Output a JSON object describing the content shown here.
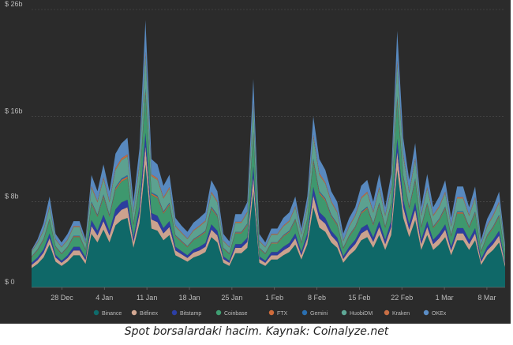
{
  "caption": "Spot borsalardaki hacim. Kaynak: Coinalyze.net",
  "chart_data": {
    "type": "area",
    "stacked": true,
    "ylim": [
      0,
      26
    ],
    "yticks": [
      0,
      8,
      16,
      26
    ],
    "ytick_labels": [
      "$ 0",
      "$ 8b",
      "$ 16b",
      "$ 26b"
    ],
    "x_start": "2020-12-23",
    "x_end": "2021-03-11",
    "xticks": [
      "2020-12-28",
      "2021-01-04",
      "2021-01-11",
      "2021-01-18",
      "2021-01-25",
      "2021-02-01",
      "2021-02-08",
      "2021-02-15",
      "2021-02-22",
      "2021-03-01",
      "2021-03-08"
    ],
    "xtick_labels": [
      "28 Dec",
      "4 Jan",
      "11 Jan",
      "18 Jan",
      "25 Jan",
      "1 Feb",
      "8 Feb",
      "15 Feb",
      "22 Feb",
      "1 Mar",
      "8 Mar"
    ],
    "grid": true,
    "legend_position": "bottom",
    "total": [
      3.5,
      4.5,
      6.0,
      8.5,
      5.0,
      4.2,
      5.0,
      6.2,
      6.2,
      4.5,
      10.5,
      9.0,
      11.5,
      9.0,
      12.5,
      13.5,
      14.0,
      8.0,
      13.0,
      25.0,
      12.0,
      11.5,
      9.5,
      10.5,
      6.5,
      5.8,
      5.2,
      6.0,
      6.5,
      7.0,
      10.0,
      9.0,
      5.0,
      4.3,
      6.8,
      6.8,
      8.0,
      19.5,
      5.0,
      4.2,
      5.5,
      5.5,
      6.5,
      7.0,
      8.5,
      5.5,
      8.5,
      16.0,
      12.0,
      11.0,
      9.0,
      8.0,
      5.0,
      6.5,
      7.5,
      9.5,
      10.0,
      8.0,
      10.5,
      7.5,
      10.5,
      24.0,
      14.0,
      10.0,
      13.5,
      7.5,
      10.5,
      7.5,
      8.5,
      10.0,
      6.5,
      9.5,
      9.5,
      7.5,
      9.5,
      4.5,
      6.5,
      7.5,
      9.0,
      4.0
    ],
    "series": [
      {
        "name": "Binance",
        "color": "#0e6b6b",
        "values": [
          1.8,
          2.2,
          2.8,
          4.0,
          2.4,
          2.0,
          2.4,
          3.0,
          3.0,
          2.2,
          5.0,
          4.2,
          5.4,
          4.2,
          5.8,
          6.3,
          6.5,
          3.7,
          6.0,
          11.5,
          5.5,
          5.3,
          4.4,
          4.9,
          3.0,
          2.7,
          2.4,
          2.8,
          3.0,
          3.3,
          4.7,
          4.2,
          2.3,
          2.0,
          3.2,
          3.2,
          3.7,
          9.0,
          2.3,
          2.0,
          2.6,
          2.6,
          3.0,
          3.3,
          4.0,
          2.6,
          4.0,
          7.5,
          5.6,
          5.2,
          4.2,
          3.7,
          2.3,
          3.0,
          3.5,
          4.4,
          4.7,
          3.7,
          4.9,
          3.5,
          4.9,
          11.0,
          6.5,
          4.7,
          6.3,
          3.5,
          4.9,
          3.5,
          4.0,
          4.7,
          3.0,
          4.4,
          4.4,
          3.5,
          4.4,
          2.1,
          3.0,
          3.5,
          4.2,
          1.9
        ]
      },
      {
        "name": "Bitfinex",
        "color": "#d4a993",
        "values": [
          0.3,
          0.35,
          0.45,
          0.6,
          0.4,
          0.3,
          0.35,
          0.45,
          0.45,
          0.35,
          0.75,
          0.65,
          0.8,
          0.65,
          0.85,
          0.95,
          1.0,
          0.55,
          0.9,
          1.7,
          0.85,
          0.8,
          0.65,
          0.75,
          0.45,
          0.4,
          0.35,
          0.45,
          0.45,
          0.5,
          0.7,
          0.65,
          0.35,
          0.3,
          0.5,
          0.5,
          0.55,
          1.35,
          0.35,
          0.3,
          0.4,
          0.4,
          0.45,
          0.5,
          0.6,
          0.4,
          0.6,
          1.1,
          0.85,
          0.75,
          0.65,
          0.55,
          0.35,
          0.45,
          0.55,
          0.65,
          0.7,
          0.55,
          0.75,
          0.55,
          0.75,
          1.7,
          1.0,
          0.7,
          0.95,
          0.55,
          0.75,
          0.55,
          0.6,
          0.7,
          0.45,
          0.65,
          0.65,
          0.55,
          0.65,
          0.3,
          0.45,
          0.55,
          0.65,
          0.3
        ]
      },
      {
        "name": "Bitstamp",
        "color": "#2c3fa5",
        "values": [
          0.2,
          0.25,
          0.3,
          0.45,
          0.25,
          0.2,
          0.25,
          0.35,
          0.35,
          0.25,
          0.55,
          0.45,
          0.6,
          0.45,
          0.65,
          0.7,
          0.7,
          0.4,
          0.65,
          1.25,
          0.6,
          0.6,
          0.5,
          0.55,
          0.35,
          0.3,
          0.25,
          0.3,
          0.35,
          0.35,
          0.5,
          0.45,
          0.25,
          0.2,
          0.35,
          0.35,
          0.4,
          1.0,
          0.25,
          0.2,
          0.3,
          0.3,
          0.35,
          0.35,
          0.45,
          0.3,
          0.45,
          0.8,
          0.6,
          0.55,
          0.45,
          0.4,
          0.25,
          0.35,
          0.4,
          0.5,
          0.5,
          0.4,
          0.55,
          0.4,
          0.55,
          1.2,
          0.7,
          0.5,
          0.7,
          0.4,
          0.55,
          0.4,
          0.45,
          0.5,
          0.35,
          0.5,
          0.5,
          0.4,
          0.5,
          0.25,
          0.35,
          0.4,
          0.45,
          0.2
        ]
      },
      {
        "name": "Coinbase",
        "color": "#3f9e72",
        "values": [
          0.5,
          0.65,
          0.85,
          1.2,
          0.7,
          0.6,
          0.7,
          0.9,
          0.9,
          0.65,
          1.5,
          1.3,
          1.65,
          1.3,
          1.8,
          1.95,
          2.0,
          1.15,
          1.85,
          3.6,
          1.7,
          1.65,
          1.35,
          1.5,
          0.95,
          0.85,
          0.75,
          0.85,
          0.95,
          1.0,
          1.45,
          1.3,
          0.7,
          0.6,
          1.0,
          1.0,
          1.15,
          2.8,
          0.7,
          0.6,
          0.8,
          0.8,
          0.95,
          1.0,
          1.2,
          0.8,
          1.2,
          2.3,
          1.7,
          1.6,
          1.3,
          1.15,
          0.7,
          0.95,
          1.1,
          1.35,
          1.45,
          1.15,
          1.5,
          1.1,
          1.5,
          3.45,
          2.0,
          1.45,
          1.95,
          1.1,
          1.5,
          1.1,
          1.2,
          1.45,
          0.95,
          1.35,
          1.35,
          1.1,
          1.35,
          0.65,
          0.95,
          1.1,
          1.3,
          0.6
        ]
      },
      {
        "name": "FTX",
        "color": "#cf6b3a",
        "values": [
          0.05,
          0.06,
          0.08,
          0.1,
          0.06,
          0.05,
          0.06,
          0.08,
          0.08,
          0.06,
          0.13,
          0.11,
          0.14,
          0.11,
          0.15,
          0.16,
          0.17,
          0.1,
          0.16,
          0.31,
          0.15,
          0.14,
          0.12,
          0.13,
          0.08,
          0.07,
          0.06,
          0.07,
          0.08,
          0.09,
          0.12,
          0.11,
          0.06,
          0.05,
          0.08,
          0.08,
          0.1,
          0.24,
          0.06,
          0.05,
          0.07,
          0.07,
          0.08,
          0.09,
          0.1,
          0.07,
          0.1,
          0.2,
          0.15,
          0.14,
          0.11,
          0.1,
          0.06,
          0.08,
          0.09,
          0.12,
          0.12,
          0.1,
          0.13,
          0.09,
          0.13,
          0.3,
          0.17,
          0.12,
          0.17,
          0.09,
          0.13,
          0.09,
          0.1,
          0.12,
          0.08,
          0.12,
          0.12,
          0.09,
          0.12,
          0.06,
          0.08,
          0.09,
          0.11,
          0.05
        ]
      },
      {
        "name": "Gemini",
        "color": "#2a6fb0",
        "values": [
          0.04,
          0.05,
          0.06,
          0.08,
          0.05,
          0.04,
          0.05,
          0.06,
          0.06,
          0.05,
          0.1,
          0.09,
          0.11,
          0.09,
          0.12,
          0.13,
          0.13,
          0.08,
          0.12,
          0.24,
          0.11,
          0.11,
          0.09,
          0.1,
          0.06,
          0.06,
          0.05,
          0.06,
          0.06,
          0.07,
          0.1,
          0.09,
          0.05,
          0.04,
          0.06,
          0.06,
          0.08,
          0.18,
          0.05,
          0.04,
          0.05,
          0.05,
          0.06,
          0.07,
          0.08,
          0.05,
          0.08,
          0.15,
          0.11,
          0.1,
          0.09,
          0.08,
          0.05,
          0.06,
          0.07,
          0.09,
          0.1,
          0.08,
          0.1,
          0.07,
          0.1,
          0.23,
          0.13,
          0.1,
          0.13,
          0.07,
          0.1,
          0.07,
          0.08,
          0.1,
          0.06,
          0.09,
          0.09,
          0.07,
          0.09,
          0.04,
          0.06,
          0.07,
          0.09,
          0.04
        ]
      },
      {
        "name": "HuobiDM",
        "color": "#5fa896",
        "values": [
          0.45,
          0.6,
          0.75,
          1.05,
          0.6,
          0.55,
          0.6,
          0.8,
          0.8,
          0.55,
          1.3,
          1.15,
          1.45,
          1.15,
          1.6,
          1.7,
          1.75,
          1.0,
          1.6,
          3.1,
          1.5,
          1.45,
          1.2,
          1.3,
          0.8,
          0.7,
          0.65,
          0.75,
          0.8,
          0.85,
          1.25,
          1.15,
          0.6,
          0.55,
          0.85,
          0.85,
          1.0,
          2.45,
          0.6,
          0.55,
          0.7,
          0.7,
          0.8,
          0.85,
          1.05,
          0.7,
          1.05,
          2.0,
          1.5,
          1.35,
          1.15,
          1.0,
          0.6,
          0.8,
          0.95,
          1.2,
          1.25,
          1.0,
          1.3,
          0.95,
          1.3,
          3.0,
          1.75,
          1.25,
          1.7,
          0.95,
          1.3,
          0.95,
          1.05,
          1.25,
          0.8,
          1.2,
          1.2,
          0.95,
          1.2,
          0.55,
          0.8,
          0.95,
          1.1,
          0.5
        ]
      },
      {
        "name": "Kraken",
        "color": "#c96f45",
        "values": [
          0.05,
          0.06,
          0.08,
          0.12,
          0.07,
          0.06,
          0.07,
          0.09,
          0.09,
          0.06,
          0.15,
          0.13,
          0.16,
          0.13,
          0.18,
          0.19,
          0.2,
          0.11,
          0.18,
          0.35,
          0.17,
          0.16,
          0.13,
          0.15,
          0.09,
          0.08,
          0.07,
          0.08,
          0.09,
          0.1,
          0.14,
          0.13,
          0.07,
          0.06,
          0.1,
          0.1,
          0.11,
          0.27,
          0.07,
          0.06,
          0.08,
          0.08,
          0.09,
          0.1,
          0.12,
          0.08,
          0.12,
          0.22,
          0.17,
          0.15,
          0.13,
          0.11,
          0.07,
          0.09,
          0.11,
          0.13,
          0.14,
          0.11,
          0.15,
          0.11,
          0.15,
          0.34,
          0.2,
          0.14,
          0.19,
          0.11,
          0.15,
          0.11,
          0.12,
          0.14,
          0.09,
          0.13,
          0.13,
          0.11,
          0.13,
          0.06,
          0.09,
          0.11,
          0.13,
          0.06
        ]
      },
      {
        "name": "OKEx",
        "color": "#5b8ec7",
        "values": [
          0.11,
          0.28,
          0.63,
          0.9,
          0.47,
          0.4,
          0.52,
          0.47,
          0.47,
          0.36,
          1.02,
          0.92,
          1.19,
          0.92,
          1.35,
          1.39,
          1.55,
          0.91,
          1.54,
          2.95,
          1.42,
          1.29,
          1.06,
          1.17,
          0.72,
          0.62,
          0.62,
          0.69,
          0.72,
          0.76,
          1.07,
          0.92,
          0.62,
          0.5,
          0.71,
          0.71,
          0.91,
          2.21,
          0.62,
          0.4,
          0.5,
          0.5,
          0.72,
          0.76,
          0.9,
          0.5,
          0.9,
          1.73,
          1.32,
          1.14,
          0.92,
          0.91,
          0.64,
          0.72,
          0.73,
          1.07,
          1.09,
          0.91,
          1.22,
          0.73,
          1.22,
          2.78,
          1.55,
          1.09,
          1.41,
          0.73,
          1.22,
          0.73,
          0.9,
          1.07,
          0.72,
          0.99,
          0.99,
          0.73,
          0.99,
          0.44,
          0.62,
          0.73,
          0.92,
          0.35
        ]
      }
    ]
  }
}
